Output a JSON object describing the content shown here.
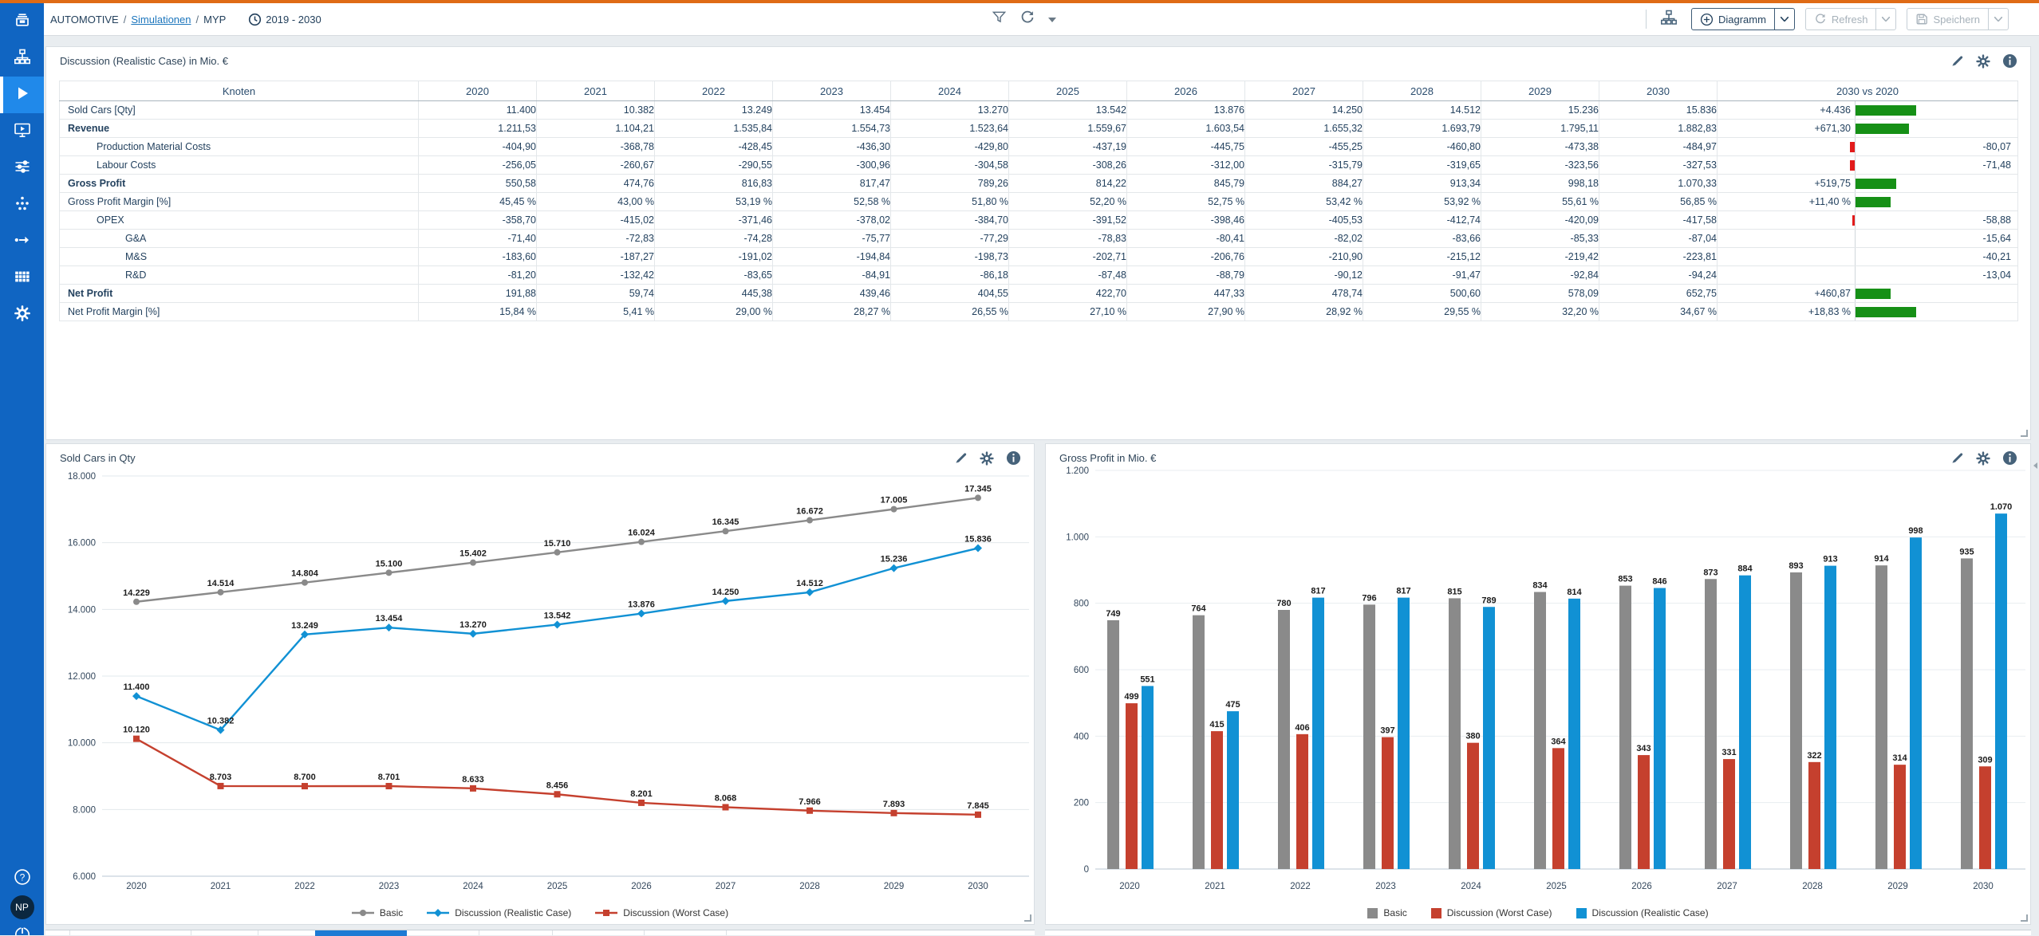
{
  "topbar": {
    "breadcrumb": {
      "root": "AUTOMOTIVE",
      "sep1": "/",
      "link": "Simulationen",
      "sep2": "/",
      "current": "MYP"
    },
    "period": "2019 - 2030",
    "buttons": {
      "diagramm": "Diagramm",
      "refresh": "Refresh",
      "save": "Speichern"
    }
  },
  "sidebar": {
    "user_initials": "NP",
    "help_glyph": "?"
  },
  "table": {
    "title": "Discussion (Realistic Case) in Mio. €",
    "columns": [
      "Knoten",
      "2020",
      "2021",
      "2022",
      "2023",
      "2024",
      "2025",
      "2026",
      "2027",
      "2028",
      "2029",
      "2030",
      "2030 vs 2020"
    ],
    "rows": [
      {
        "label": "Sold Cars [Qty]",
        "indent": 0,
        "bold": false,
        "sep": false,
        "values": [
          "11.400",
          "10.382",
          "13.249",
          "13.454",
          "13.270",
          "13.542",
          "13.876",
          "14.250",
          "14.512",
          "15.236",
          "15.836"
        ],
        "delta": {
          "text": "+4.436",
          "dir": "pos",
          "bar": 76
        }
      },
      {
        "label": "Revenue",
        "indent": 0,
        "bold": true,
        "sep": true,
        "values": [
          "1.211,53",
          "1.104,21",
          "1.535,84",
          "1.554,73",
          "1.523,64",
          "1.559,67",
          "1.603,54",
          "1.655,32",
          "1.693,79",
          "1.795,11",
          "1.882,83"
        ],
        "delta": {
          "text": "+671,30",
          "dir": "pos",
          "bar": 67
        }
      },
      {
        "label": "Production Material Costs",
        "indent": 1,
        "bold": false,
        "sep": true,
        "values": [
          "-404,90",
          "-368,78",
          "-428,45",
          "-436,30",
          "-429,80",
          "-437,19",
          "-445,75",
          "-455,25",
          "-460,80",
          "-473,38",
          "-484,97"
        ],
        "delta": {
          "text": "-80,07",
          "dir": "neg",
          "bar": 6
        }
      },
      {
        "label": "Labour Costs",
        "indent": 1,
        "bold": false,
        "sep": false,
        "values": [
          "-256,05",
          "-260,67",
          "-290,55",
          "-300,96",
          "-304,58",
          "-308,26",
          "-312,00",
          "-315,79",
          "-319,65",
          "-323,56",
          "-327,53"
        ],
        "delta": {
          "text": "-71,48",
          "dir": "neg",
          "bar": 6
        }
      },
      {
        "label": "Gross Profit",
        "indent": 0,
        "bold": true,
        "sep": true,
        "values": [
          "550,58",
          "474,76",
          "816,83",
          "817,47",
          "789,26",
          "814,22",
          "845,79",
          "884,27",
          "913,34",
          "998,18",
          "1.070,33"
        ],
        "delta": {
          "text": "+519,75",
          "dir": "pos",
          "bar": 51
        }
      },
      {
        "label": "Gross Profit Margin [%]",
        "indent": 0,
        "bold": false,
        "sep": false,
        "values": [
          "45,45 %",
          "43,00 %",
          "53,19 %",
          "52,58 %",
          "51,80 %",
          "52,20 %",
          "52,75 %",
          "53,42 %",
          "53,92 %",
          "55,61 %",
          "56,85 %"
        ],
        "delta": {
          "text": "+11,40 %",
          "dir": "pos",
          "bar": 44
        }
      },
      {
        "label": "OPEX",
        "indent": 1,
        "bold": false,
        "sep": true,
        "values": [
          "-358,70",
          "-415,02",
          "-371,46",
          "-378,02",
          "-384,70",
          "-391,52",
          "-398,46",
          "-405,53",
          "-412,74",
          "-420,09",
          "-417,58"
        ],
        "delta": {
          "text": "-58,88",
          "dir": "neg",
          "bar": 3
        }
      },
      {
        "label": "G&A",
        "indent": 2,
        "bold": false,
        "sep": false,
        "values": [
          "-71,40",
          "-72,83",
          "-74,28",
          "-75,77",
          "-77,29",
          "-78,83",
          "-80,41",
          "-82,02",
          "-83,66",
          "-85,33",
          "-87,04"
        ],
        "delta": {
          "text": "-15,64",
          "dir": "neg",
          "bar": 0
        }
      },
      {
        "label": "M&S",
        "indent": 2,
        "bold": false,
        "sep": false,
        "values": [
          "-183,60",
          "-187,27",
          "-191,02",
          "-194,84",
          "-198,73",
          "-202,71",
          "-206,76",
          "-210,90",
          "-215,12",
          "-219,42",
          "-223,81"
        ],
        "delta": {
          "text": "-40,21",
          "dir": "neg",
          "bar": 0
        }
      },
      {
        "label": "R&D",
        "indent": 2,
        "bold": false,
        "sep": false,
        "values": [
          "-81,20",
          "-132,42",
          "-83,65",
          "-84,91",
          "-86,18",
          "-87,48",
          "-88,79",
          "-90,12",
          "-91,47",
          "-92,84",
          "-94,24"
        ],
        "delta": {
          "text": "-13,04",
          "dir": "neg",
          "bar": 0
        }
      },
      {
        "label": "Net Profit",
        "indent": 0,
        "bold": true,
        "sep": true,
        "values": [
          "191,88",
          "59,74",
          "445,38",
          "439,46",
          "404,55",
          "422,70",
          "447,33",
          "478,74",
          "500,60",
          "578,09",
          "652,75"
        ],
        "delta": {
          "text": "+460,87",
          "dir": "pos",
          "bar": 44
        }
      },
      {
        "label": "Net Profit Margin [%]",
        "indent": 0,
        "bold": false,
        "sep": false,
        "values": [
          "15,84 %",
          "5,41 %",
          "29,00 %",
          "28,27 %",
          "26,55 %",
          "27,10 %",
          "27,90 %",
          "28,92 %",
          "29,55 %",
          "32,20 %",
          "34,67 %"
        ],
        "delta": {
          "text": "+18,83 %",
          "dir": "pos",
          "bar": 76
        }
      }
    ],
    "colors": {
      "delta_pos": "#169016",
      "delta_neg": "#e21b1b"
    }
  },
  "charts": {
    "sold_cars": {
      "type": "line",
      "title": "Sold Cars in Qty",
      "categories": [
        "2020",
        "2021",
        "2022",
        "2023",
        "2024",
        "2025",
        "2026",
        "2027",
        "2028",
        "2029",
        "2030"
      ],
      "y_min": 6000,
      "y_max": 18000,
      "y_tick_values": [
        18000,
        16000,
        14000,
        12000,
        10000,
        8000,
        6000
      ],
      "y_tick_labels": [
        "18.000",
        "16.000",
        "14.000",
        "12.000",
        "10.000",
        "8.000",
        "6.000"
      ],
      "series": [
        {
          "name": "Basic",
          "color": "#8a8a8a",
          "marker": "circle",
          "values": [
            14229,
            14514,
            14804,
            15100,
            15402,
            15710,
            16024,
            16345,
            16672,
            17005,
            17345
          ]
        },
        {
          "name": "Discussion (Realistic Case)",
          "color": "#1191d4",
          "marker": "diamond",
          "values": [
            11400,
            10382,
            13249,
            13454,
            13270,
            13542,
            13876,
            14250,
            14512,
            15236,
            15836
          ]
        },
        {
          "name": "Discussion (Worst Case)",
          "color": "#c5402e",
          "marker": "square",
          "values": [
            10120,
            8703,
            8700,
            8701,
            8633,
            8456,
            8201,
            8068,
            7966,
            7893,
            7845
          ]
        }
      ]
    },
    "gross_profit": {
      "type": "bar",
      "title": "Gross Profit in Mio. €",
      "categories": [
        "2020",
        "2021",
        "2022",
        "2023",
        "2024",
        "2025",
        "2026",
        "2027",
        "2028",
        "2029",
        "2030"
      ],
      "y_min": 0,
      "y_max": 1200,
      "y_tick_values": [
        1200,
        1000,
        800,
        600,
        400,
        200,
        0
      ],
      "y_tick_labels": [
        "1.200",
        "1.000",
        "800",
        "600",
        "400",
        "200",
        "0"
      ],
      "series": [
        {
          "name": "Basic",
          "color": "#8a8a8a",
          "values": [
            749,
            764,
            780,
            796,
            815,
            834,
            853,
            873,
            893,
            914,
            935
          ]
        },
        {
          "name": "Discussion (Worst Case)",
          "color": "#c5402e",
          "values": [
            499,
            415,
            406,
            397,
            380,
            364,
            343,
            331,
            322,
            314,
            309
          ]
        },
        {
          "name": "Discussion (Realistic Case)",
          "color": "#1191d4",
          "values": [
            551,
            475,
            817,
            817,
            789,
            814,
            846,
            884,
            913,
            998,
            1070
          ]
        }
      ]
    }
  }
}
